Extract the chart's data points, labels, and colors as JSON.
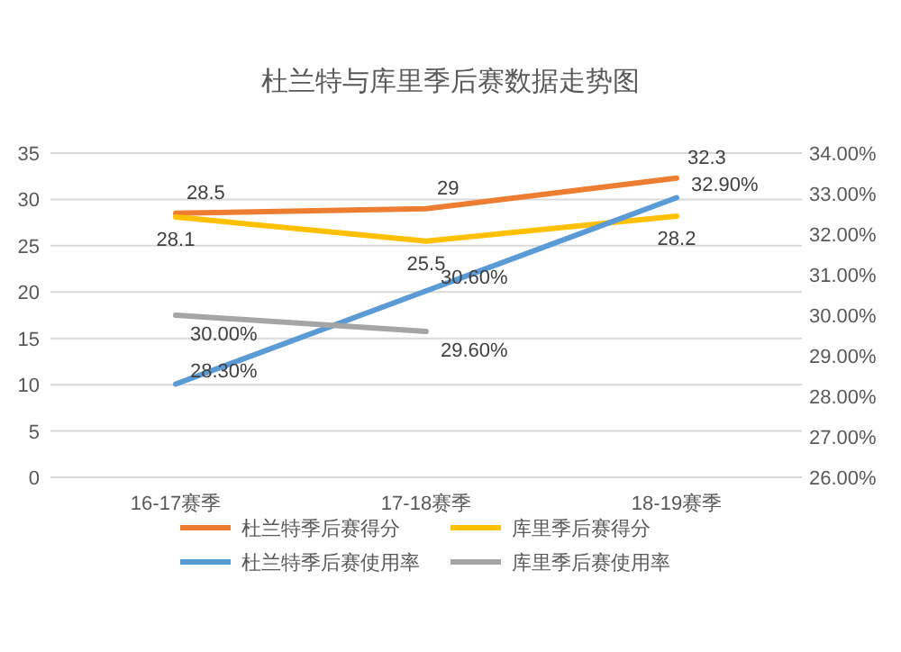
{
  "chart_data": {
    "type": "line",
    "title": "杜兰特与库里季后赛数据走势图",
    "categories": [
      "16-17赛季",
      "17-18赛季",
      "18-19赛季"
    ],
    "ylim": [
      0,
      35
    ],
    "yticks": [
      0,
      5,
      10,
      15,
      20,
      25,
      30,
      35
    ],
    "y2lim": [
      26,
      34
    ],
    "y2ticks": [
      {
        "value": 26,
        "label": "26.00%"
      },
      {
        "value": 27,
        "label": "27.00%"
      },
      {
        "value": 28,
        "label": "28.00%"
      },
      {
        "value": 29,
        "label": "29.00%"
      },
      {
        "value": 30,
        "label": "30.00%"
      },
      {
        "value": 31,
        "label": "31.00%"
      },
      {
        "value": 32,
        "label": "32.00%"
      },
      {
        "value": 33,
        "label": "33.00%"
      },
      {
        "value": 34,
        "label": "34.00%"
      }
    ],
    "grid": "y",
    "legend": "bottom",
    "marker": "none",
    "series": [
      {
        "name": "杜兰特季后赛得分",
        "color": "#ed7d31",
        "values": [
          28.5,
          29,
          32.3
        ],
        "value_labels": [
          "28.5",
          "29",
          "32.3"
        ]
      },
      {
        "name": "库里季后赛得分",
        "color": "#ffc000",
        "values": [
          28.1,
          25.5,
          28.2
        ],
        "value_labels": [
          "28.1",
          "25.5",
          "28.2"
        ]
      },
      {
        "name": "杜兰特季后赛使用率",
        "color": "#5b9bd5",
        "axis": "y2",
        "values": [
          28.3,
          30.6,
          32.9
        ],
        "value_labels": [
          "28.30%",
          "30.60%",
          "32.90%"
        ]
      },
      {
        "name": "库里季后赛使用率",
        "color": "#a5a5a5",
        "axis": "y2",
        "values": [
          30.0,
          29.6,
          null
        ],
        "value_labels": [
          "30.00%",
          "29.60%",
          null
        ]
      }
    ]
  }
}
